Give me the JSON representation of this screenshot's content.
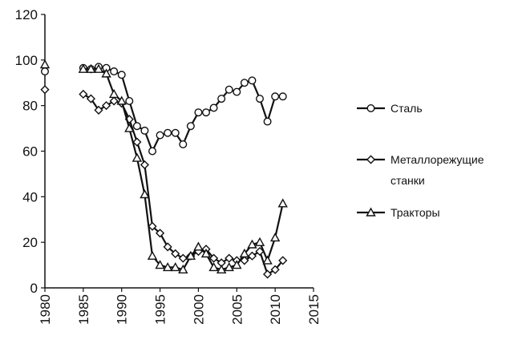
{
  "chart_data": {
    "type": "line",
    "title": "",
    "xlabel": "",
    "ylabel": "",
    "xlim": [
      1980,
      2015
    ],
    "ylim": [
      0,
      120
    ],
    "x_ticks": [
      1980,
      1985,
      1990,
      1995,
      2000,
      2005,
      2010,
      2015
    ],
    "y_ticks": [
      0,
      20,
      40,
      60,
      80,
      100,
      120
    ],
    "grid": false,
    "legend_position": "right",
    "series": [
      {
        "name": "Сталь",
        "marker": "circle",
        "points": [
          [
            1980,
            95
          ],
          [
            1985,
            96.5
          ],
          [
            1986,
            96
          ],
          [
            1987,
            97
          ],
          [
            1988,
            96.5
          ],
          [
            1989,
            95
          ],
          [
            1990,
            93.5
          ],
          [
            1991,
            82
          ],
          [
            1992,
            71
          ],
          [
            1993,
            69
          ],
          [
            1994,
            60
          ],
          [
            1995,
            67
          ],
          [
            1996,
            68
          ],
          [
            1997,
            68
          ],
          [
            1998,
            63
          ],
          [
            1999,
            71
          ],
          [
            2000,
            77
          ],
          [
            2001,
            77
          ],
          [
            2002,
            79
          ],
          [
            2003,
            83
          ],
          [
            2004,
            87
          ],
          [
            2005,
            86
          ],
          [
            2006,
            90
          ],
          [
            2007,
            91
          ],
          [
            2008,
            83
          ],
          [
            2009,
            73
          ],
          [
            2010,
            84
          ],
          [
            2011,
            84
          ]
        ]
      },
      {
        "name": "Металлорежущие станки",
        "marker": "diamond",
        "points": [
          [
            1980,
            87
          ],
          [
            1985,
            85
          ],
          [
            1986,
            83
          ],
          [
            1987,
            78
          ],
          [
            1988,
            80
          ],
          [
            1989,
            82
          ],
          [
            1990,
            81
          ],
          [
            1991,
            74
          ],
          [
            1992,
            64
          ],
          [
            1993,
            54
          ],
          [
            1994,
            27
          ],
          [
            1995,
            24
          ],
          [
            1996,
            18
          ],
          [
            1997,
            15
          ],
          [
            1998,
            13
          ],
          [
            1999,
            14
          ],
          [
            2000,
            16
          ],
          [
            2001,
            17
          ],
          [
            2002,
            13
          ],
          [
            2003,
            11
          ],
          [
            2004,
            13
          ],
          [
            2005,
            12
          ],
          [
            2006,
            12
          ],
          [
            2007,
            14
          ],
          [
            2008,
            16
          ],
          [
            2009,
            6
          ],
          [
            2010,
            8
          ],
          [
            2011,
            12
          ]
        ]
      },
      {
        "name": "Тракторы",
        "marker": "triangle",
        "points": [
          [
            1980,
            98
          ],
          [
            1985,
            96
          ],
          [
            1986,
            96
          ],
          [
            1987,
            96
          ],
          [
            1988,
            94
          ],
          [
            1989,
            85
          ],
          [
            1990,
            82
          ],
          [
            1991,
            70
          ],
          [
            1992,
            57
          ],
          [
            1993,
            41
          ],
          [
            1994,
            14
          ],
          [
            1995,
            10
          ],
          [
            1996,
            9
          ],
          [
            1997,
            9
          ],
          [
            1998,
            8
          ],
          [
            1999,
            14
          ],
          [
            2000,
            18
          ],
          [
            2001,
            15
          ],
          [
            2002,
            9
          ],
          [
            2003,
            8
          ],
          [
            2004,
            9
          ],
          [
            2005,
            10
          ],
          [
            2006,
            15
          ],
          [
            2007,
            19
          ],
          [
            2008,
            20
          ],
          [
            2009,
            12
          ],
          [
            2010,
            22
          ],
          [
            2011,
            37
          ]
        ]
      }
    ]
  }
}
